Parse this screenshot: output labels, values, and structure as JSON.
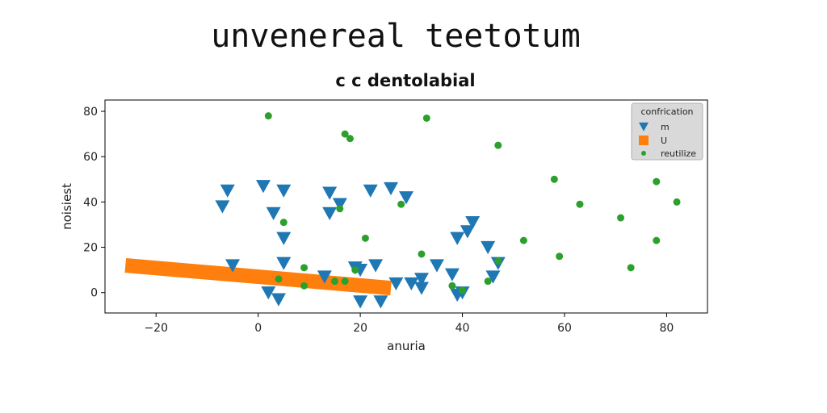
{
  "title": "unvenereal teetotum",
  "chart_data": {
    "type": "scatter",
    "title": "c c dentolabial",
    "xlabel": "anuria",
    "ylabel": "noisiest",
    "xlim": [
      -30,
      88
    ],
    "ylim": [
      -9,
      85
    ],
    "xticks": [
      -20,
      0,
      20,
      40,
      60,
      80
    ],
    "yticks": [
      0,
      20,
      40,
      60,
      80
    ],
    "legend": {
      "title": "confrication",
      "placement": "top-right"
    },
    "series": [
      {
        "name": "m",
        "marker": "triangle-down",
        "color": "#1f77b4",
        "points": [
          [
            -7,
            38
          ],
          [
            -6,
            45
          ],
          [
            -5,
            12
          ],
          [
            1,
            47
          ],
          [
            2,
            0
          ],
          [
            3,
            35
          ],
          [
            4,
            -3
          ],
          [
            5,
            45
          ],
          [
            5,
            24
          ],
          [
            5,
            13
          ],
          [
            13,
            7
          ],
          [
            14,
            44
          ],
          [
            14,
            35
          ],
          [
            16,
            39
          ],
          [
            19,
            11
          ],
          [
            20,
            -4
          ],
          [
            20,
            10
          ],
          [
            22,
            45
          ],
          [
            23,
            12
          ],
          [
            24,
            -4
          ],
          [
            26,
            46
          ],
          [
            27,
            4
          ],
          [
            29,
            42
          ],
          [
            30,
            4
          ],
          [
            32,
            2
          ],
          [
            32,
            6
          ],
          [
            35,
            12
          ],
          [
            38,
            8
          ],
          [
            39,
            24
          ],
          [
            39,
            -1
          ],
          [
            40,
            0
          ],
          [
            41,
            27
          ],
          [
            42,
            31
          ],
          [
            45,
            20
          ],
          [
            46,
            7
          ],
          [
            47,
            13
          ]
        ]
      },
      {
        "name": "U",
        "marker": "square",
        "color": "#ff7f0e",
        "line": {
          "x": [
            -26,
            26
          ],
          "y": [
            12,
            2
          ]
        }
      },
      {
        "name": "reutilize",
        "marker": "dot",
        "color": "#2ca02c",
        "points": [
          [
            2,
            78
          ],
          [
            33,
            77
          ],
          [
            17,
            70
          ],
          [
            18,
            68
          ],
          [
            47,
            65
          ],
          [
            58,
            50
          ],
          [
            63,
            39
          ],
          [
            71,
            33
          ],
          [
            78,
            49
          ],
          [
            82,
            40
          ],
          [
            78,
            23
          ],
          [
            73,
            11
          ],
          [
            59,
            16
          ],
          [
            52,
            23
          ],
          [
            47,
            14
          ],
          [
            45,
            5
          ],
          [
            40,
            1
          ],
          [
            38,
            3
          ],
          [
            32,
            17
          ],
          [
            28,
            39
          ],
          [
            21,
            24
          ],
          [
            16,
            37
          ],
          [
            5,
            31
          ],
          [
            9,
            11
          ],
          [
            9,
            3
          ],
          [
            4,
            6
          ],
          [
            15,
            5
          ],
          [
            17,
            5
          ],
          [
            19,
            10
          ],
          [
            80,
            77
          ]
        ]
      }
    ]
  }
}
